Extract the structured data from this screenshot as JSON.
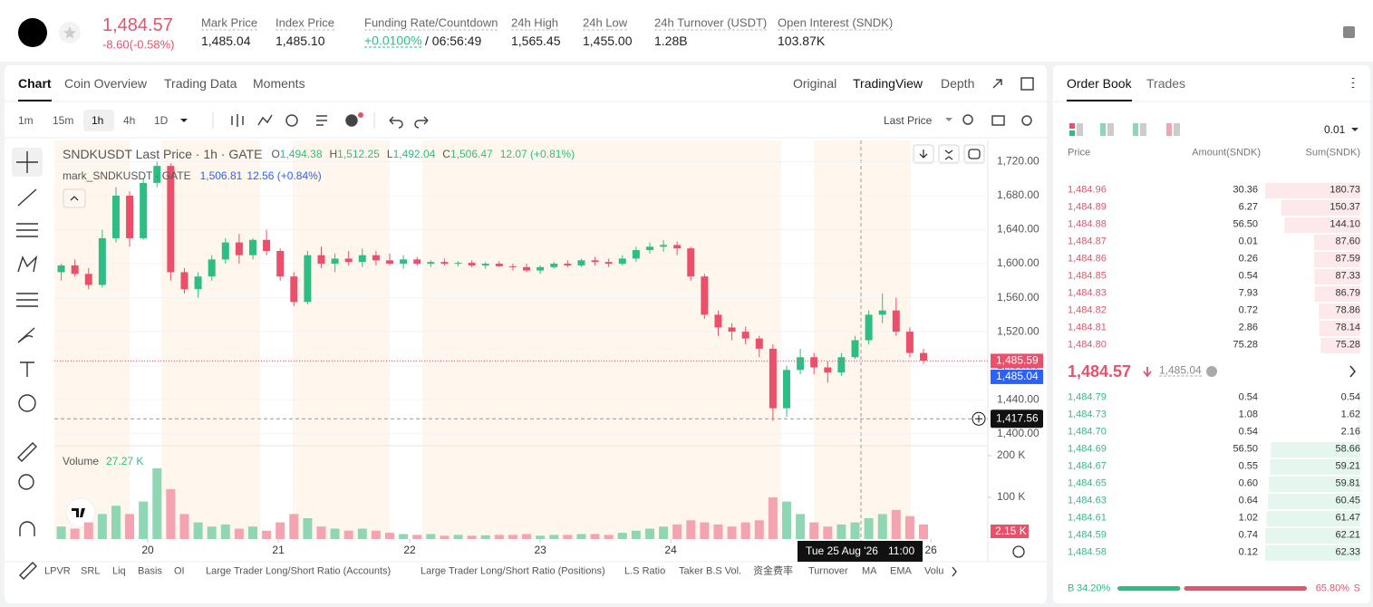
{
  "header": {
    "price": "1,484.57",
    "change": "-8.60(-0.58%)",
    "stats": [
      {
        "label": "Mark Price",
        "value": "1,485.04"
      },
      {
        "label": "Index Price",
        "value": "1,485.10"
      },
      {
        "label": "Funding Rate/Countdown",
        "value": "+0.0100%",
        "extra": "/ 06:56:49"
      },
      {
        "label": "24h High",
        "value": "1,565.45"
      },
      {
        "label": "24h Low",
        "value": "1,455.00"
      },
      {
        "label": "24h Turnover (USDT)",
        "value": "1.28B"
      },
      {
        "label": "Open Interest (SNDK)",
        "value": "103.87K"
      }
    ]
  },
  "chart_tabs": [
    "Chart",
    "Coin Overview",
    "Trading Data",
    "Moments"
  ],
  "view_tabs": [
    "Original",
    "TradingView",
    "Depth"
  ],
  "intervals": [
    "1m",
    "15m",
    "1h",
    "4h",
    "1D"
  ],
  "price_source": "Last Price",
  "indicators": [
    "LPVR",
    "SRL",
    "Liq",
    "Basis",
    "OI",
    "Large Trader Long/Short Ratio (Accounts)",
    "Large Trader Long/Short Ratio (Positions)",
    "L.S Ratio",
    "Taker B.S Vol.",
    "资金费率",
    "Turnover",
    "MA",
    "EMA",
    "Volu"
  ],
  "chart": {
    "type": "candlestick",
    "title": "SNDKUSDT Last Price · 1h · GATE",
    "legend": [
      {
        "key": "O",
        "value": "1,494.38"
      },
      {
        "key": "H",
        "value": "1,512.25"
      },
      {
        "key": "L",
        "value": "1,492.04"
      },
      {
        "key": "C",
        "value": "1,506.47"
      }
    ],
    "legend_change": "12.07 (+0.81%)",
    "mark_title": "mark_SNDKUSDT · GATE",
    "mark_value": "1,506.81",
    "mark_change": "12.56 (+0.84%)",
    "up_color": "#2ebd85",
    "down_color": "#eb4f69",
    "ylim": [
      1388,
      1745
    ],
    "yticks": [
      {
        "value": 1400,
        "label": "1,400.00"
      },
      {
        "value": 1440,
        "label": "1,440.00"
      },
      {
        "value": 1480,
        "label": "1,480.00"
      },
      {
        "value": 1520,
        "label": "1,520.00"
      },
      {
        "value": 1560,
        "label": "1,560.00"
      },
      {
        "value": 1600,
        "label": "1,600.00"
      },
      {
        "value": 1640,
        "label": "1,640.00"
      },
      {
        "value": 1680,
        "label": "1,680.00"
      },
      {
        "value": 1720,
        "label": "1,720.00"
      }
    ],
    "grid": true,
    "xlim": [
      -0.5,
      67.7
    ],
    "xticks": [
      {
        "value": 6.32,
        "label": "20"
      },
      {
        "value": 15.86,
        "label": "21"
      },
      {
        "value": 25.46,
        "label": "22"
      },
      {
        "value": 35.0,
        "label": "23"
      },
      {
        "value": 44.53,
        "label": "24"
      },
      {
        "value": 63.54,
        "label": "26"
      }
    ],
    "ohlc": {
      "open": [
        1590,
        1598,
        1588,
        1575,
        1630,
        1680,
        1630,
        1695,
        1715,
        1590,
        1570,
        1585,
        1605,
        1625,
        1610,
        1628,
        1615,
        1585,
        1555,
        1610,
        1600,
        1606,
        1602,
        1610,
        1604,
        1600,
        1605,
        1600,
        1602,
        1600,
        1601,
        1598,
        1600,
        1597,
        1596,
        1592,
        1596,
        1600,
        1598,
        1604,
        1602,
        1600,
        1606,
        1616,
        1620,
        1622,
        1618,
        1585,
        1540,
        1525,
        1520,
        1512,
        1500,
        1430,
        1475,
        1490,
        1478,
        1472,
        1490,
        1510,
        1540,
        1545,
        1520,
        1495
      ],
      "high": [
        1600,
        1605,
        1595,
        1640,
        1690,
        1685,
        1700,
        1720,
        1718,
        1595,
        1590,
        1610,
        1630,
        1635,
        1630,
        1640,
        1618,
        1590,
        1615,
        1620,
        1612,
        1615,
        1618,
        1615,
        1612,
        1610,
        1608,
        1604,
        1606,
        1603,
        1604,
        1602,
        1603,
        1600,
        1600,
        1598,
        1602,
        1604,
        1606,
        1608,
        1606,
        1610,
        1620,
        1625,
        1628,
        1626,
        1620,
        1588,
        1545,
        1530,
        1526,
        1515,
        1505,
        1480,
        1500,
        1495,
        1485,
        1495,
        1515,
        1545,
        1565,
        1560,
        1525,
        1500
      ],
      "low": [
        1580,
        1585,
        1570,
        1572,
        1625,
        1620,
        1628,
        1690,
        1580,
        1565,
        1560,
        1580,
        1600,
        1600,
        1605,
        1610,
        1580,
        1550,
        1552,
        1595,
        1590,
        1598,
        1596,
        1598,
        1598,
        1594,
        1598,
        1596,
        1598,
        1597,
        1596,
        1594,
        1596,
        1592,
        1590,
        1588,
        1594,
        1596,
        1596,
        1598,
        1596,
        1598,
        1602,
        1612,
        1614,
        1610,
        1580,
        1535,
        1515,
        1510,
        1505,
        1490,
        1415,
        1420,
        1470,
        1470,
        1460,
        1468,
        1488,
        1505,
        1530,
        1515,
        1490,
        1482
      ],
      "close": [
        1598,
        1588,
        1575,
        1630,
        1680,
        1630,
        1695,
        1715,
        1590,
        1570,
        1585,
        1605,
        1625,
        1610,
        1628,
        1615,
        1585,
        1555,
        1610,
        1600,
        1606,
        1602,
        1610,
        1604,
        1600,
        1605,
        1600,
        1602,
        1600,
        1601,
        1598,
        1600,
        1597,
        1596,
        1592,
        1596,
        1600,
        1598,
        1604,
        1602,
        1600,
        1606,
        1616,
        1620,
        1622,
        1618,
        1585,
        1540,
        1525,
        1520,
        1512,
        1500,
        1430,
        1475,
        1490,
        1478,
        1472,
        1490,
        1510,
        1540,
        1545,
        1520,
        1495,
        1486
      ]
    },
    "price_tags": [
      {
        "value": 1485.59,
        "label": "1,485.59",
        "color": "#eb4f69"
      },
      {
        "value": 1485.04,
        "label": "1,485.04",
        "color": "#2962ff"
      }
    ],
    "crosshair": {
      "value": 1417.56,
      "label": "1,417.56"
    },
    "tooltip": {
      "date": "Tue 25 Aug '26",
      "time": "11:00"
    },
    "volume": {
      "legend": "Volume",
      "value_text": "27.27 K",
      "up_color": "#8fd6b5",
      "down_color": "#f4a3b0",
      "values": [
        30,
        25,
        40,
        60,
        80,
        60,
        90,
        170,
        120,
        60,
        40,
        30,
        35,
        25,
        30,
        20,
        40,
        60,
        50,
        30,
        25,
        20,
        25,
        20,
        15,
        12,
        10,
        12,
        8,
        10,
        8,
        9,
        10,
        10,
        12,
        8,
        10,
        10,
        12,
        12,
        10,
        15,
        20,
        25,
        30,
        35,
        45,
        40,
        35,
        30,
        40,
        45,
        100,
        90,
        60,
        40,
        30,
        35,
        40,
        50,
        60,
        70,
        55,
        35
      ],
      "ylim": [
        0,
        224
      ],
      "yticks": [
        {
          "value": 100,
          "label": "100 K"
        },
        {
          "value": 200,
          "label": "200 K"
        }
      ],
      "tag": {
        "value": 2.15,
        "label": "2.15 K"
      }
    }
  },
  "order_book": {
    "tabs": [
      "Order Book",
      "Trades"
    ],
    "precision": "0.01",
    "columns": [
      "Price",
      "Amount(SNDK)",
      "Sum(SNDK)"
    ],
    "ask_color": "#e8526b",
    "bid_color": "#2ebd85",
    "ask_bar_color": "#fde8eb",
    "bid_bar_color": "#e4f6ed",
    "asks": [
      {
        "price": "1,484.96",
        "amount": "30.36",
        "sum": 180.73
      },
      {
        "price": "1,484.89",
        "amount": "6.27",
        "sum": 150.37
      },
      {
        "price": "1,484.88",
        "amount": "56.50",
        "sum": {
          "value": 144.1,
          "label": "144.10"
        }
      },
      {
        "price": "1,484.87",
        "amount": "0.01",
        "sum": {
          "value": 87.6,
          "label": "87.60"
        }
      },
      {
        "price": "1,484.86",
        "amount": "0.26",
        "sum": 87.59
      },
      {
        "price": "1,484.85",
        "amount": "0.54",
        "sum": 87.33
      },
      {
        "price": "1,484.83",
        "amount": "7.93",
        "sum": 86.79
      },
      {
        "price": "1,484.82",
        "amount": "0.72",
        "sum": 78.86
      },
      {
        "price": "1,484.81",
        "amount": "2.86",
        "sum": 78.14
      },
      {
        "price": "1,484.80",
        "amount": "75.28",
        "sum": 75.28
      }
    ],
    "last": "1,484.57",
    "mark": "1,485.04",
    "bids": [
      {
        "price": "1,484.79",
        "amount": "0.54",
        "sum": 0.54
      },
      {
        "price": "1,484.73",
        "amount": "1.08",
        "sum": 1.62
      },
      {
        "price": "1,484.70",
        "amount": "0.54",
        "sum": 2.16
      },
      {
        "price": "1,484.69",
        "amount": "56.50",
        "sum": 58.66
      },
      {
        "price": "1,484.67",
        "amount": "0.55",
        "sum": 59.21
      },
      {
        "price": "1,484.65",
        "amount": "0.60",
        "sum": 59.81
      },
      {
        "price": "1,484.63",
        "amount": "0.64",
        "sum": 60.45
      },
      {
        "price": "1,484.61",
        "amount": "1.02",
        "sum": 61.47
      },
      {
        "price": "1,484.59",
        "amount": "0.74",
        "sum": 62.21
      },
      {
        "price": "1,484.58",
        "amount": "0.12",
        "sum": 62.33
      }
    ],
    "ratio": {
      "buy_label": "B",
      "buy": {
        "value": 34.2,
        "label": "34.20%"
      },
      "sell": {
        "value": 65.8,
        "label": "65.80%"
      },
      "sell_label": "S"
    }
  }
}
